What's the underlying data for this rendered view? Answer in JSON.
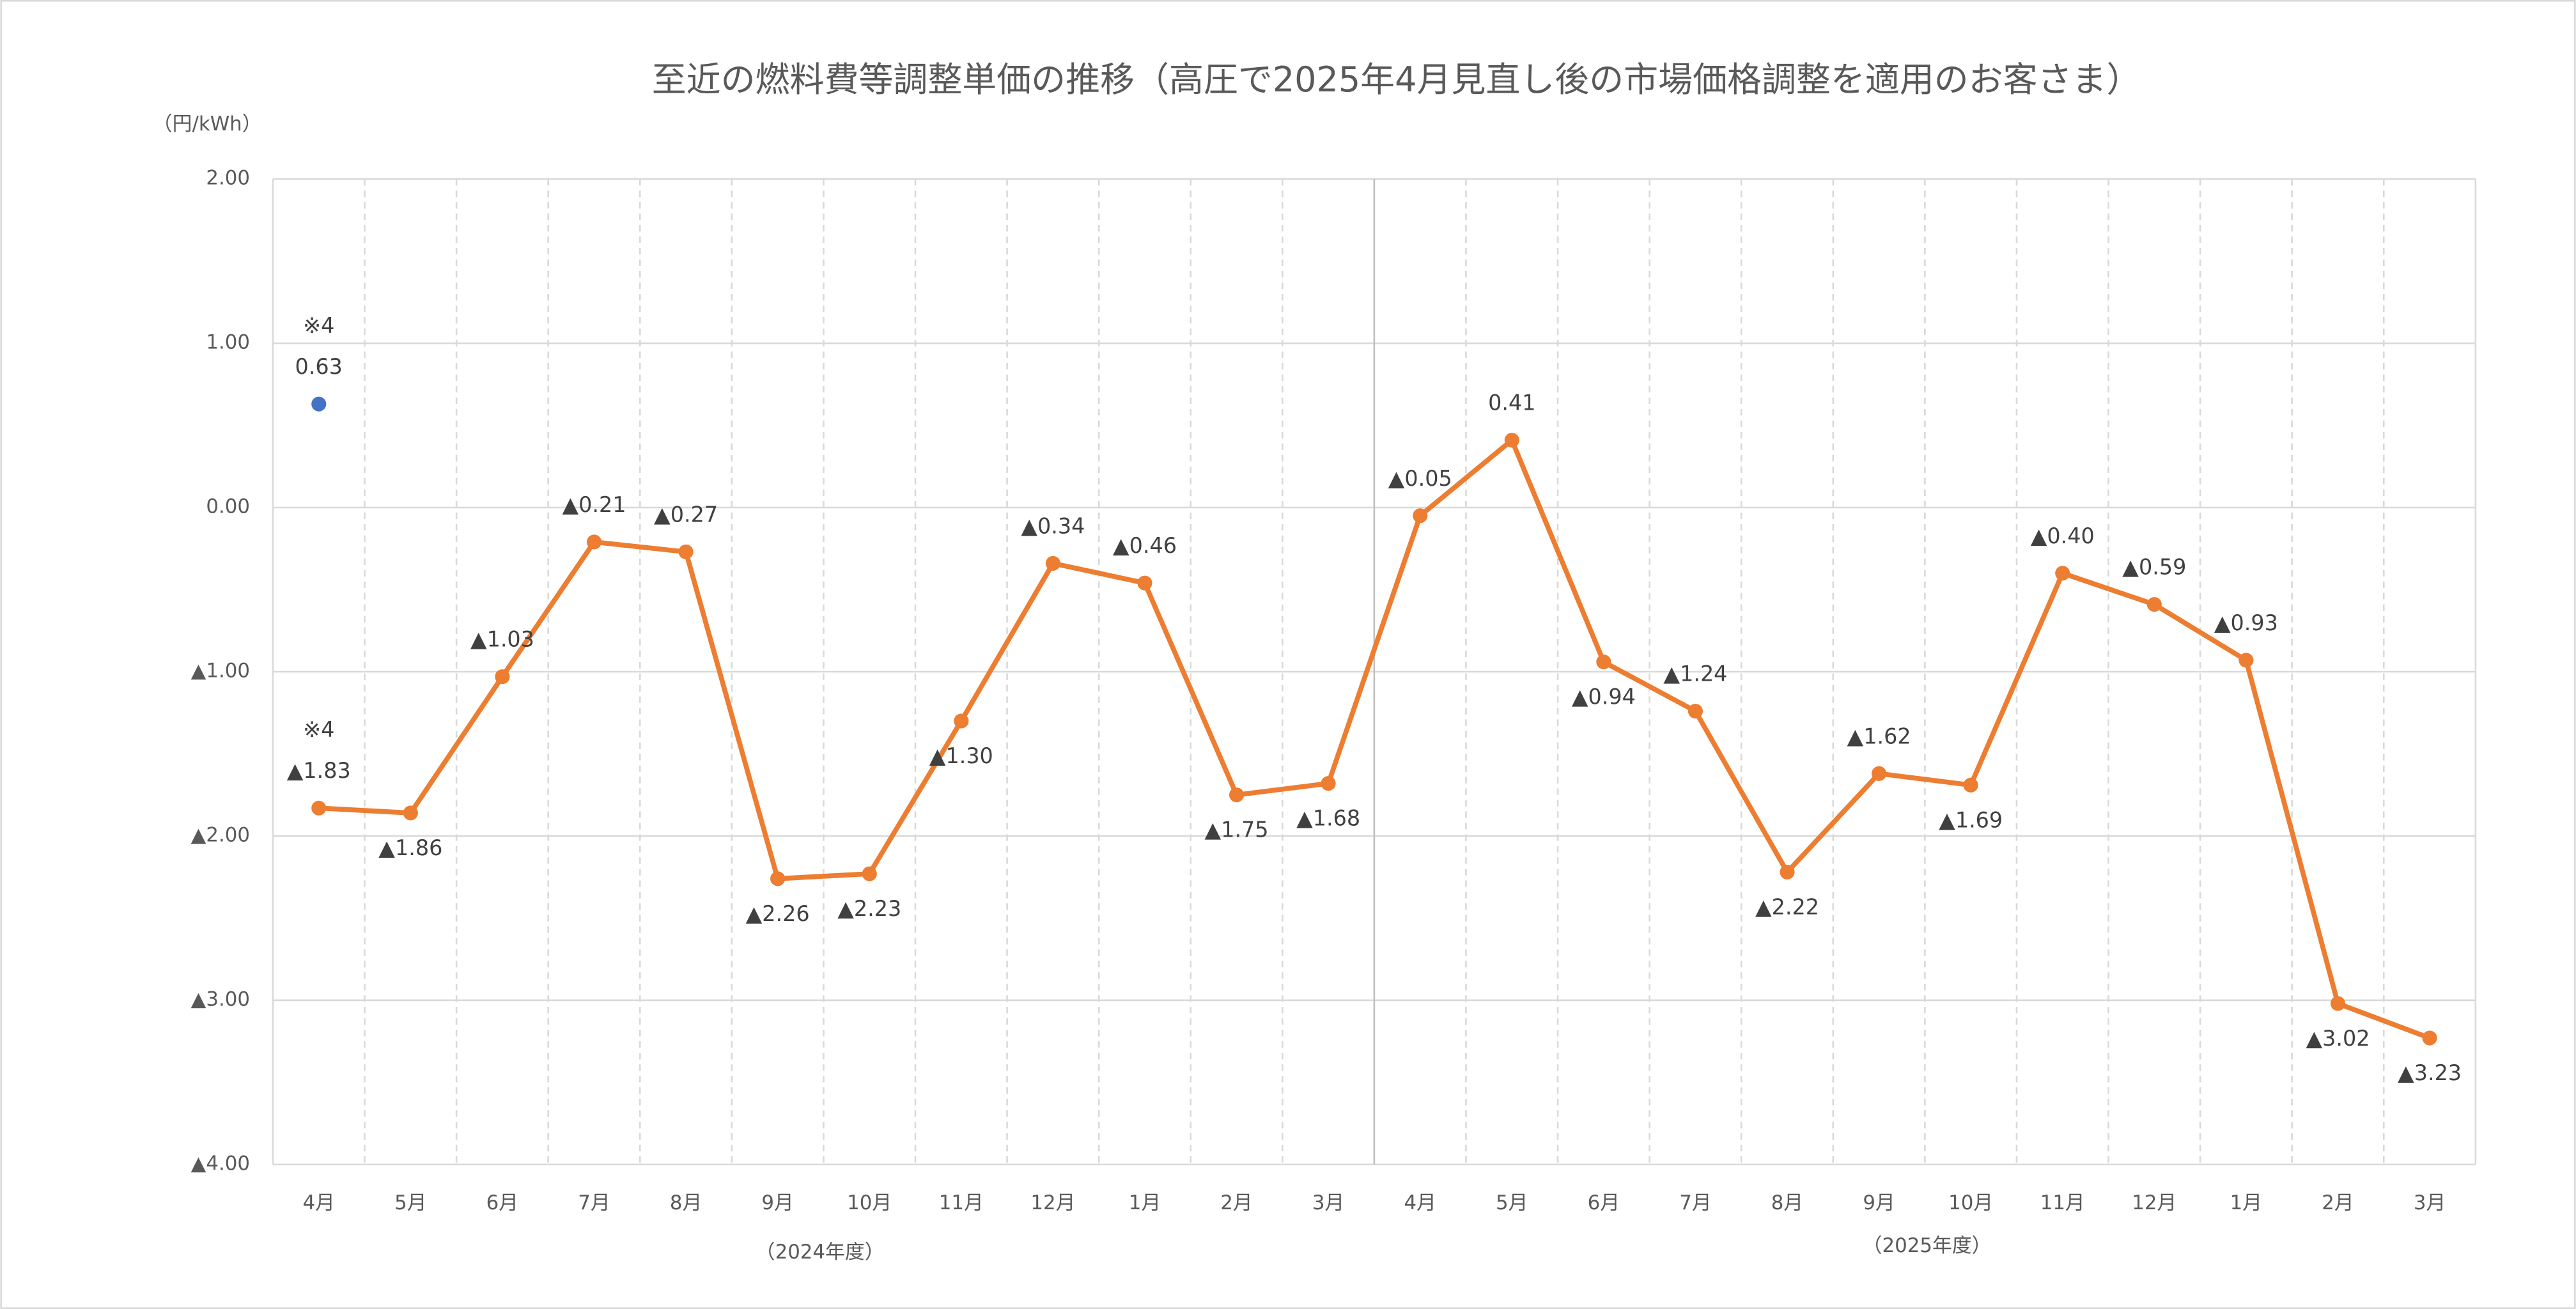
{
  "chart_data": {
    "type": "line",
    "title": "至近の燃料費等調整単価の推移（高圧で2025年4月見直し後の市場価格調整を適用のお客さま）",
    "y_label": "（円/kWh）",
    "categories": [
      "4月",
      "5月",
      "6月",
      "7月",
      "8月",
      "9月",
      "10月",
      "11月",
      "12月",
      "1月",
      "2月",
      "3月",
      "4月",
      "5月",
      "6月",
      "7月",
      "8月",
      "9月",
      "10月",
      "11月",
      "12月",
      "1月",
      "2月",
      "3月"
    ],
    "groups": [
      "（2024年度）",
      "（2025年度）"
    ],
    "series": [
      {
        "color": "#ED7D31",
        "note": "※4",
        "values": [
          -1.83,
          -1.86,
          -1.03,
          -0.21,
          -0.27,
          -2.26,
          -2.23,
          -1.3,
          -0.34,
          -0.46,
          -1.75,
          -1.68,
          -0.05,
          0.41,
          -0.94,
          -1.24,
          -2.22,
          -1.62,
          -1.69,
          -0.4,
          -0.59,
          -0.93,
          -3.02,
          -3.23
        ],
        "value_labels": [
          "▲1.83",
          "▲1.86",
          "▲1.03",
          "▲0.21",
          "▲0.27",
          "▲2.26",
          "▲2.23",
          "▲1.30",
          "▲0.34",
          "▲0.46",
          "▲1.75",
          "▲1.68",
          "▲0.05",
          "0.41",
          "▲0.94",
          "▲1.24",
          "▲2.22",
          "▲1.62",
          "▲1.69",
          "▲0.40",
          "▲0.59",
          "▲0.93",
          "▲3.02",
          "▲3.23"
        ]
      },
      {
        "color": "#4472C4",
        "note": "※4",
        "values": [
          0.63,
          null,
          null,
          null,
          null,
          null,
          null,
          null,
          null,
          null,
          null,
          null,
          null,
          null,
          null,
          null,
          null,
          null,
          null,
          null,
          null,
          null,
          null,
          null
        ],
        "value_labels": [
          "0.63",
          null,
          null,
          null,
          null,
          null,
          null,
          null,
          null,
          null,
          null,
          null,
          null,
          null,
          null,
          null,
          null,
          null,
          null,
          null,
          null,
          null,
          null,
          null
        ]
      }
    ],
    "ylim": [
      -4,
      2
    ],
    "yticks": [
      {
        "value": 2,
        "label": "2.00"
      },
      {
        "value": 1,
        "label": "1.00"
      },
      {
        "value": 0,
        "label": "0.00"
      },
      {
        "value": -1,
        "label": "▲1.00"
      },
      {
        "value": -2,
        "label": "▲2.00"
      },
      {
        "value": -3,
        "label": "▲3.00"
      },
      {
        "value": -4,
        "label": "▲4.00"
      }
    ],
    "grid": true
  }
}
